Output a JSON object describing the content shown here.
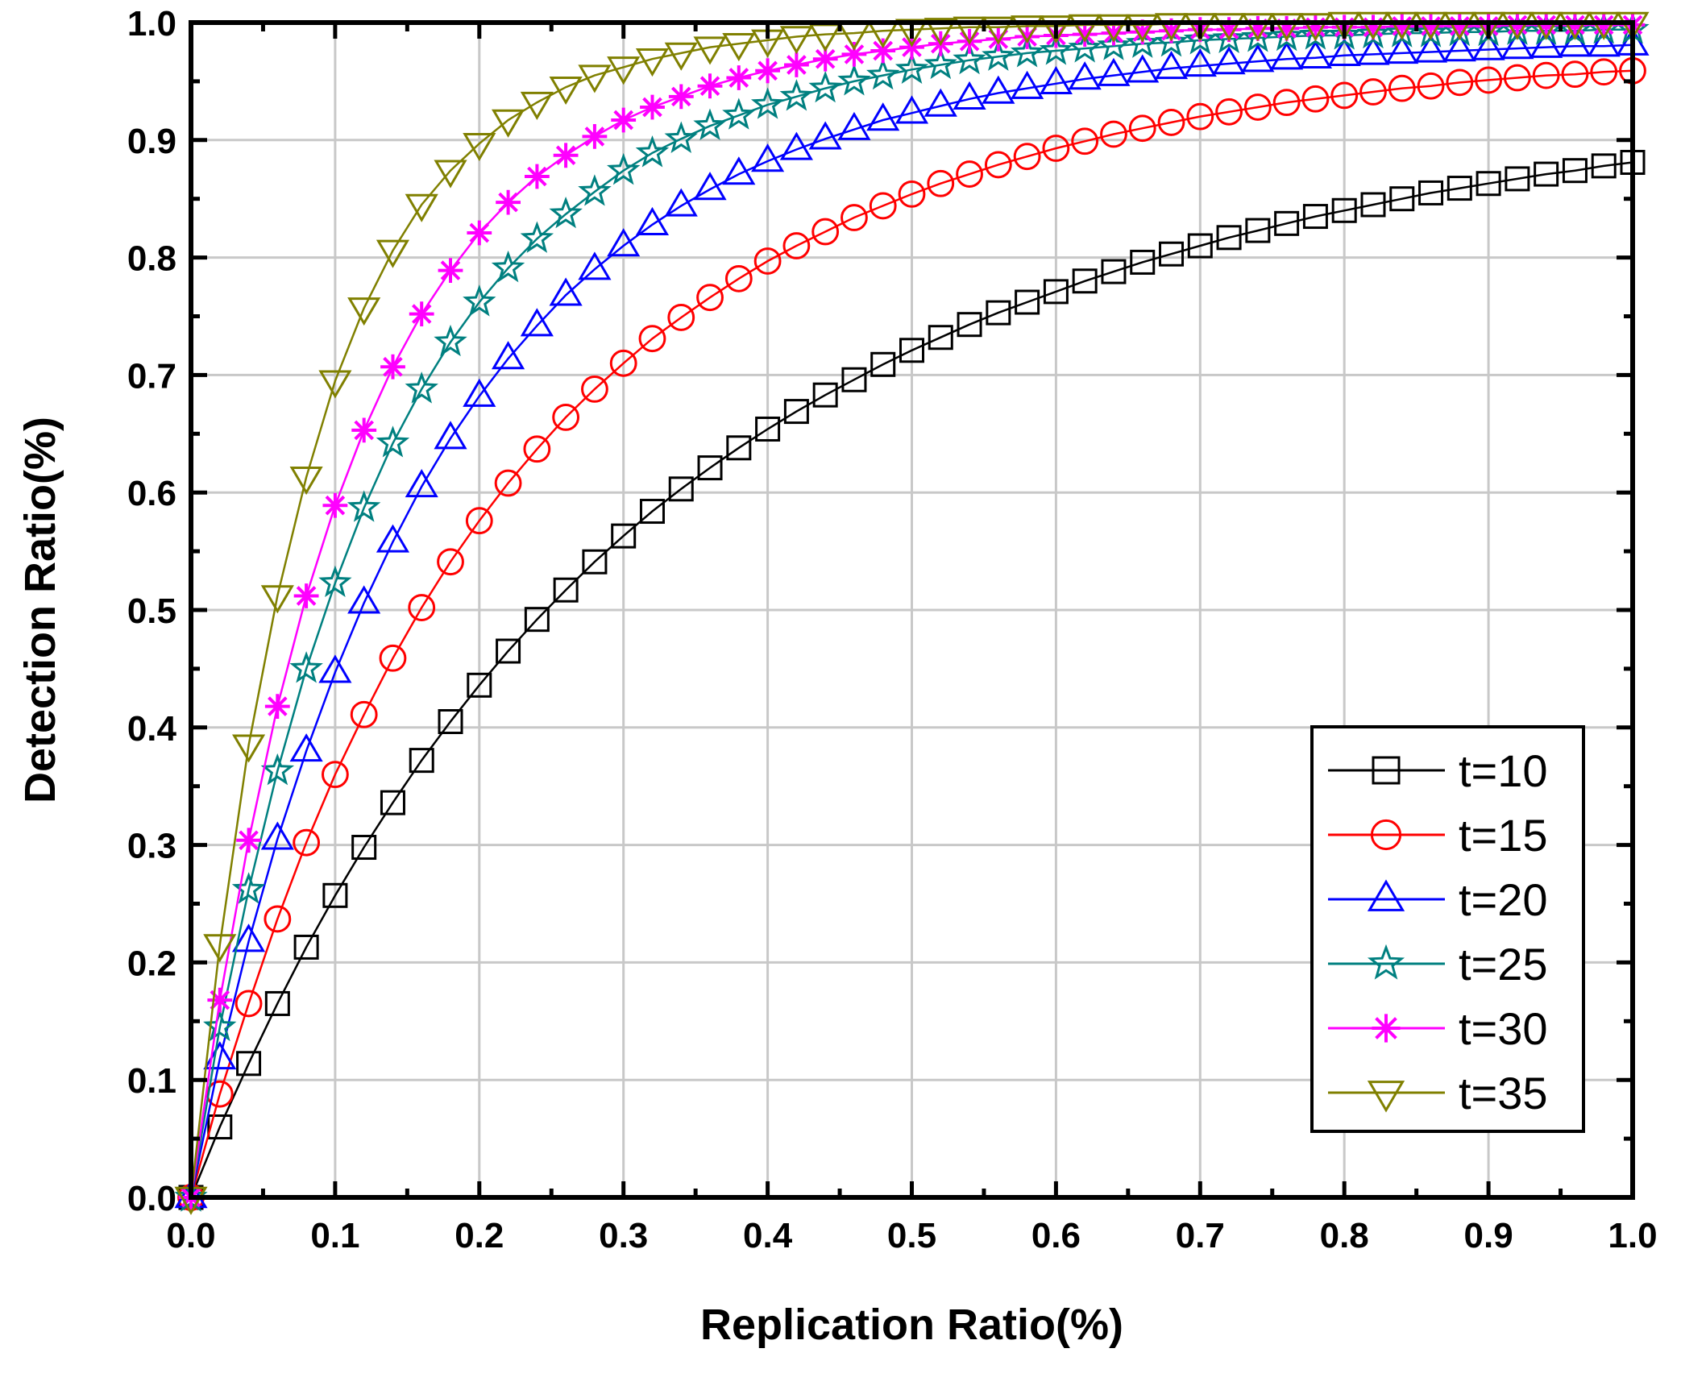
{
  "chart_data": {
    "type": "line",
    "title": "",
    "xlabel": "Replication Ratio(%)",
    "ylabel": "Detection Ratio(%)",
    "xlim": [
      0,
      1
    ],
    "ylim": [
      0,
      1
    ],
    "x_ticks": [
      "0.0",
      "0.1",
      "0.2",
      "0.3",
      "0.4",
      "0.5",
      "0.6",
      "0.7",
      "0.8",
      "0.9",
      "1.0"
    ],
    "y_ticks": [
      "0.0",
      "0.1",
      "0.2",
      "0.3",
      "0.4",
      "0.5",
      "0.6",
      "0.7",
      "0.8",
      "0.9",
      "1.0"
    ],
    "grid": true,
    "legend_position": "bottom-right",
    "x": [
      0,
      0.02,
      0.04,
      0.06,
      0.08,
      0.1,
      0.12,
      0.14,
      0.16,
      0.18,
      0.2,
      0.22,
      0.24,
      0.26,
      0.28,
      0.3,
      0.32,
      0.34,
      0.36,
      0.38,
      0.4,
      0.42,
      0.44,
      0.46,
      0.48,
      0.5,
      0.52,
      0.54,
      0.56,
      0.58,
      0.6,
      0.62,
      0.64,
      0.66,
      0.68,
      0.7,
      0.72,
      0.74,
      0.76,
      0.78,
      0.8,
      0.82,
      0.84,
      0.86,
      0.88,
      0.9,
      0.92,
      0.94,
      0.96,
      0.98,
      1.0
    ],
    "series": [
      {
        "name": "t=10",
        "color": "#000000",
        "marker": "square",
        "values": [
          0.0,
          0.06,
          0.114,
          0.165,
          0.213,
          0.257,
          0.298,
          0.336,
          0.372,
          0.405,
          0.436,
          0.465,
          0.492,
          0.517,
          0.541,
          0.563,
          0.584,
          0.603,
          0.621,
          0.638,
          0.654,
          0.669,
          0.683,
          0.696,
          0.709,
          0.721,
          0.732,
          0.743,
          0.753,
          0.762,
          0.771,
          0.78,
          0.788,
          0.796,
          0.803,
          0.81,
          0.817,
          0.823,
          0.829,
          0.835,
          0.84,
          0.845,
          0.85,
          0.855,
          0.859,
          0.863,
          0.867,
          0.871,
          0.874,
          0.878,
          0.881
        ]
      },
      {
        "name": "t=15",
        "color": "#ff0000",
        "marker": "circle",
        "values": [
          0.0,
          0.088,
          0.165,
          0.237,
          0.302,
          0.36,
          0.411,
          0.459,
          0.502,
          0.541,
          0.576,
          0.608,
          0.637,
          0.664,
          0.688,
          0.71,
          0.731,
          0.749,
          0.766,
          0.782,
          0.797,
          0.81,
          0.822,
          0.834,
          0.844,
          0.854,
          0.863,
          0.871,
          0.879,
          0.886,
          0.893,
          0.899,
          0.905,
          0.91,
          0.915,
          0.92,
          0.924,
          0.928,
          0.932,
          0.935,
          0.938,
          0.941,
          0.944,
          0.946,
          0.949,
          0.951,
          0.953,
          0.955,
          0.956,
          0.958,
          0.959
        ]
      },
      {
        "name": "t=20",
        "color": "#0000ff",
        "marker": "triangle-up",
        "values": [
          0.0,
          0.118,
          0.218,
          0.305,
          0.38,
          0.447,
          0.506,
          0.558,
          0.605,
          0.646,
          0.682,
          0.714,
          0.742,
          0.768,
          0.79,
          0.81,
          0.828,
          0.844,
          0.858,
          0.871,
          0.882,
          0.892,
          0.901,
          0.909,
          0.917,
          0.923,
          0.929,
          0.935,
          0.94,
          0.944,
          0.948,
          0.952,
          0.955,
          0.958,
          0.961,
          0.963,
          0.965,
          0.967,
          0.969,
          0.97,
          0.972,
          0.973,
          0.974,
          0.975,
          0.976,
          0.977,
          0.978,
          0.979,
          0.98,
          0.98,
          0.981
        ]
      },
      {
        "name": "t=25",
        "color": "#008080",
        "marker": "star",
        "values": [
          0.0,
          0.145,
          0.262,
          0.363,
          0.45,
          0.523,
          0.587,
          0.642,
          0.688,
          0.728,
          0.762,
          0.791,
          0.816,
          0.837,
          0.856,
          0.874,
          0.889,
          0.901,
          0.912,
          0.921,
          0.93,
          0.937,
          0.944,
          0.95,
          0.955,
          0.96,
          0.964,
          0.968,
          0.971,
          0.974,
          0.976,
          0.978,
          0.98,
          0.982,
          0.983,
          0.985,
          0.986,
          0.987,
          0.988,
          0.989,
          0.989,
          0.99,
          0.991,
          0.991,
          0.992,
          0.992,
          0.993,
          0.993,
          0.993,
          0.994,
          0.994
        ]
      },
      {
        "name": "t=30",
        "color": "#ff00ff",
        "marker": "asterisk",
        "values": [
          0.0,
          0.168,
          0.304,
          0.418,
          0.512,
          0.589,
          0.653,
          0.707,
          0.752,
          0.789,
          0.821,
          0.847,
          0.869,
          0.887,
          0.903,
          0.917,
          0.928,
          0.937,
          0.946,
          0.953,
          0.959,
          0.964,
          0.969,
          0.973,
          0.976,
          0.979,
          0.982,
          0.984,
          0.986,
          0.988,
          0.989,
          0.99,
          0.991,
          0.992,
          0.993,
          0.994,
          0.994,
          0.995,
          0.995,
          0.996,
          0.996,
          0.996,
          0.997,
          0.997,
          0.997,
          0.997,
          0.998,
          0.998,
          0.998,
          0.998,
          0.998
        ]
      },
      {
        "name": "t=35",
        "color": "#808000",
        "marker": "triangle-down",
        "values": [
          0.0,
          0.215,
          0.385,
          0.512,
          0.613,
          0.695,
          0.757,
          0.806,
          0.845,
          0.874,
          0.897,
          0.917,
          0.932,
          0.945,
          0.955,
          0.962,
          0.969,
          0.974,
          0.979,
          0.982,
          0.985,
          0.988,
          0.99,
          0.991,
          0.993,
          0.994,
          0.995,
          0.996,
          0.996,
          0.997,
          0.997,
          0.998,
          0.998,
          0.998,
          0.999,
          0.999,
          0.999,
          0.999,
          0.999,
          0.999,
          1.0,
          1.0,
          1.0,
          1.0,
          1.0,
          1.0,
          1.0,
          1.0,
          1.0,
          1.0,
          1.0
        ]
      }
    ]
  }
}
